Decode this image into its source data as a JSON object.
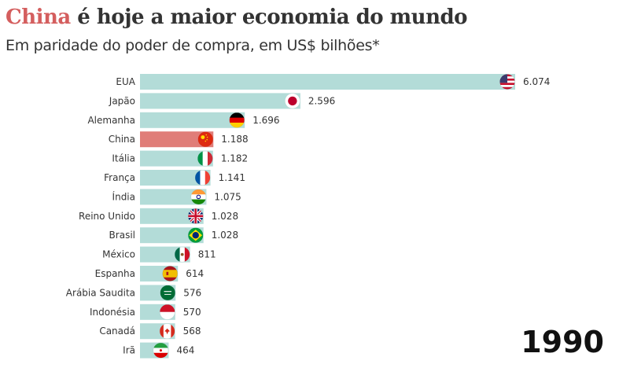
{
  "header": {
    "title_highlight": "China",
    "title_rest": " é hoje a maior economia do mundo",
    "subtitle": "Em paridade do poder de compra, em US$ bilhões*"
  },
  "year": "1990",
  "colors": {
    "bar": "#b3dcd8",
    "highlight_bar": "#e07d78",
    "title_highlight": "#d45e5e",
    "text": "#333333"
  },
  "chart_data": {
    "type": "bar",
    "orientation": "horizontal",
    "title": "China é hoje a maior economia do mundo",
    "subtitle": "Em paridade do poder de compra, em US$ bilhões*",
    "xlabel": "",
    "ylabel": "",
    "xlim": [
      0,
      6074
    ],
    "highlight": "China",
    "annotation": "1990",
    "categories": [
      "EUA",
      "Japão",
      "Alemanha",
      "China",
      "Itália",
      "França",
      "Índia",
      "Reino Unido",
      "Brasil",
      "México",
      "Espanha",
      "Arábia Saudita",
      "Indonésia",
      "Canadá",
      "Irã"
    ],
    "values": [
      6074,
      2596,
      1696,
      1188,
      1182,
      1141,
      1075,
      1028,
      1028,
      811,
      614,
      576,
      570,
      568,
      464
    ],
    "value_labels": [
      "6.074",
      "2.596",
      "1.696",
      "1.188",
      "1.182",
      "1.141",
      "1.075",
      "1.028",
      "1.028",
      "811",
      "614",
      "576",
      "570",
      "568",
      "464"
    ],
    "flag_icons": [
      "us-flag-icon",
      "japan-flag-icon",
      "germany-flag-icon",
      "china-flag-icon",
      "italy-flag-icon",
      "france-flag-icon",
      "india-flag-icon",
      "uk-flag-icon",
      "brazil-flag-icon",
      "mexico-flag-icon",
      "spain-flag-icon",
      "saudi-arabia-flag-icon",
      "indonesia-flag-icon",
      "canada-flag-icon",
      "iran-flag-icon"
    ]
  }
}
